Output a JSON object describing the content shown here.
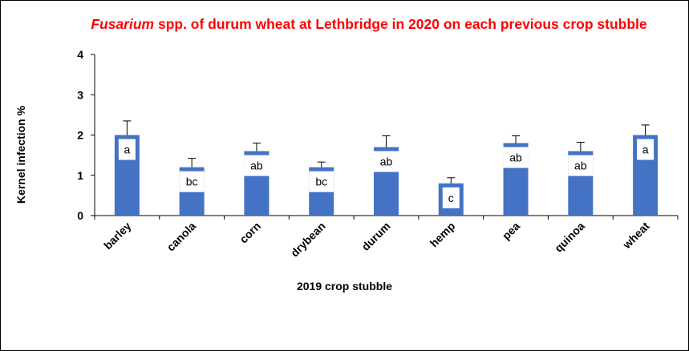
{
  "chart_data": {
    "type": "bar",
    "title_prefix": "Fusarium",
    "title_rest": " spp. of durum wheat at Lethbridge in 2020 on each previous crop stubble",
    "xlabel": "2019 crop stubble",
    "ylabel": "Kernel infection %",
    "ylim": [
      0,
      4
    ],
    "yticks": [
      0,
      1,
      2,
      3,
      4
    ],
    "categories": [
      "barley",
      "canola",
      "corn",
      "drybean",
      "durum",
      "hemp",
      "pea",
      "quinoa",
      "wheat"
    ],
    "values": [
      2.0,
      1.2,
      1.6,
      1.2,
      1.7,
      0.8,
      1.8,
      1.6,
      2.0
    ],
    "error": [
      0.35,
      0.22,
      0.2,
      0.13,
      0.28,
      0.14,
      0.18,
      0.22,
      0.25
    ],
    "significance": [
      "a",
      "bc",
      "ab",
      "bc",
      "ab",
      "c",
      "ab",
      "ab",
      "a"
    ],
    "bar_color": "#4472c4",
    "grid": false
  }
}
